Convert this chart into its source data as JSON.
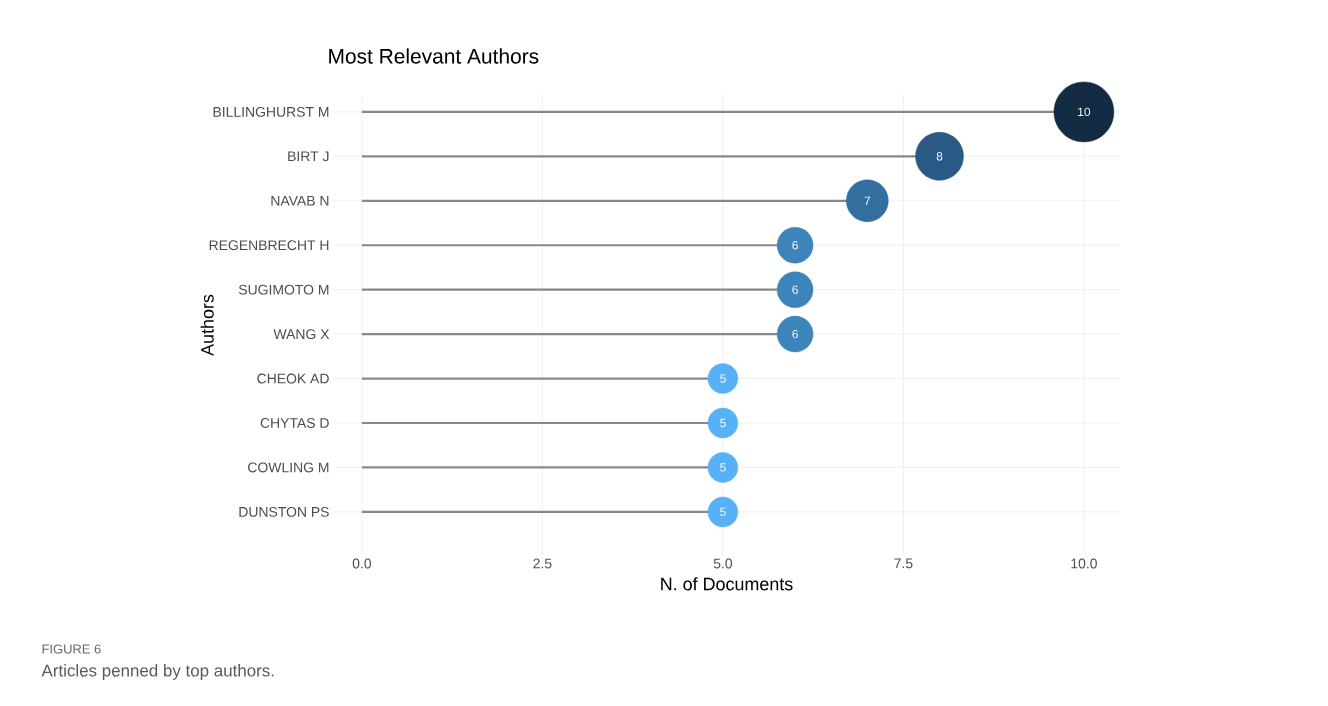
{
  "chart_data": {
    "type": "lollipop",
    "orientation": "horizontal",
    "title": "Most Relevant Authors",
    "xlabel": "N. of Documents",
    "ylabel": "Authors",
    "categories": [
      "BILLINGHURST M",
      "BIRT J",
      "NAVAB N",
      "REGENBRECHT H",
      "SUGIMOTO M",
      "WANG X",
      "CHEOK AD",
      "CHYTAS D",
      "COWLING M",
      "DUNSTON PS"
    ],
    "values": [
      10,
      8,
      7,
      6,
      6,
      6,
      5,
      5,
      5,
      5
    ],
    "sizes": [
      1,
      0.64,
      0.49,
      0.36,
      0.36,
      0.36,
      0.25,
      0.25,
      0.25,
      0.25
    ],
    "colors": [
      "#132b43",
      "#285a85",
      "#336ea0",
      "#3d84bb",
      "#3d84bb",
      "#3d84bb",
      "#56b1f7",
      "#56b1f7",
      "#56b1f7",
      "#56b1f7"
    ],
    "value_labels": [
      "10",
      "8",
      "7",
      "6",
      "6",
      "6",
      "5",
      "5",
      "5",
      "5"
    ],
    "marker": "circle",
    "grid": true,
    "xlim": [
      -0.4,
      10.5
    ],
    "xticks": [
      {
        "value": 0,
        "label": "0.0"
      },
      {
        "value": 2.5,
        "label": "2.5"
      },
      {
        "value": 5,
        "label": "5.0"
      },
      {
        "value": 7.5,
        "label": "7.5"
      },
      {
        "value": 10,
        "label": "10.0"
      }
    ],
    "annotations": [
      "FIGURE 6",
      "Articles penned by top authors."
    ]
  }
}
